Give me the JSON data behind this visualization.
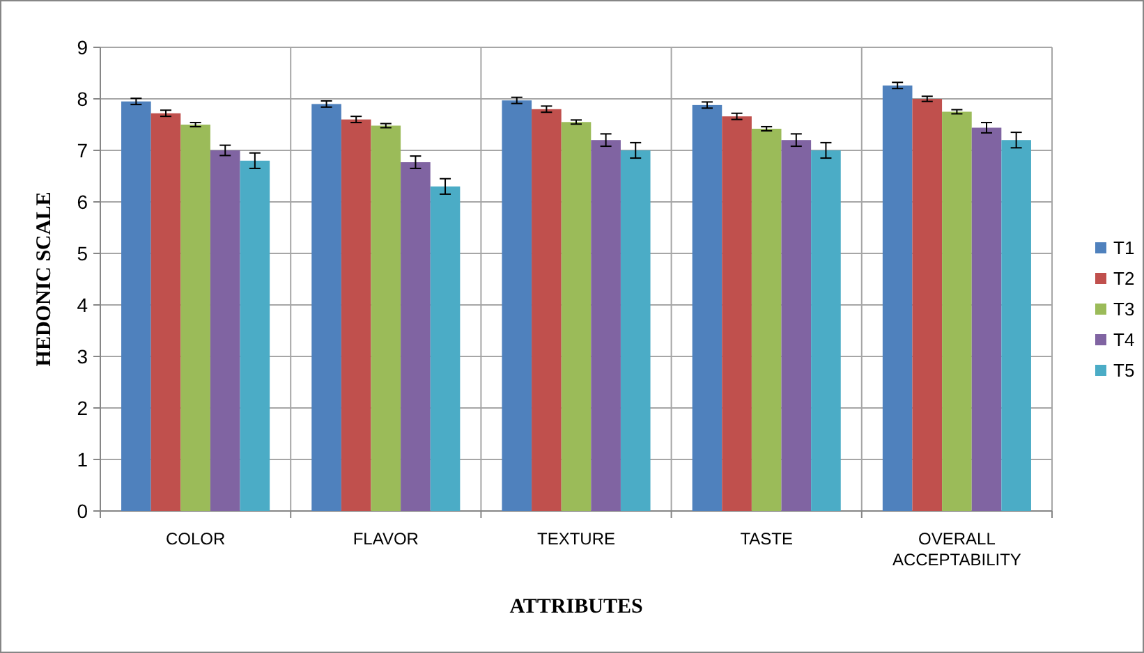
{
  "chart_data": {
    "type": "bar",
    "xlabel": "ATTRIBUTES",
    "ylabel": "HEDONIC SCALE",
    "categories": [
      "COLOR",
      "FLAVOR",
      "TEXTURE",
      "TASTE",
      "OVERALL ACCEPTABILITY"
    ],
    "series": [
      {
        "name": "T1",
        "color": "#4f81bd",
        "values": [
          7.95,
          7.9,
          7.97,
          7.88,
          8.26
        ],
        "errors": [
          0.06,
          0.06,
          0.06,
          0.06,
          0.06
        ]
      },
      {
        "name": "T2",
        "color": "#c0504d",
        "values": [
          7.72,
          7.6,
          7.8,
          7.66,
          8.0
        ],
        "errors": [
          0.06,
          0.06,
          0.06,
          0.06,
          0.05
        ]
      },
      {
        "name": "T3",
        "color": "#9bbb59",
        "values": [
          7.5,
          7.48,
          7.55,
          7.42,
          7.75
        ],
        "errors": [
          0.04,
          0.04,
          0.04,
          0.04,
          0.04
        ]
      },
      {
        "name": "T4",
        "color": "#8064a2",
        "values": [
          7.0,
          6.77,
          7.2,
          7.2,
          7.44
        ],
        "errors": [
          0.1,
          0.12,
          0.12,
          0.12,
          0.1
        ]
      },
      {
        "name": "T5",
        "color": "#4bacc6",
        "values": [
          6.8,
          6.3,
          7.0,
          7.0,
          7.2
        ],
        "errors": [
          0.15,
          0.15,
          0.15,
          0.15,
          0.15
        ]
      }
    ],
    "ylim": [
      0,
      9
    ],
    "yticks": [
      0,
      1,
      2,
      3,
      4,
      5,
      6,
      7,
      8,
      9
    ],
    "grid": true,
    "legend": "right"
  }
}
